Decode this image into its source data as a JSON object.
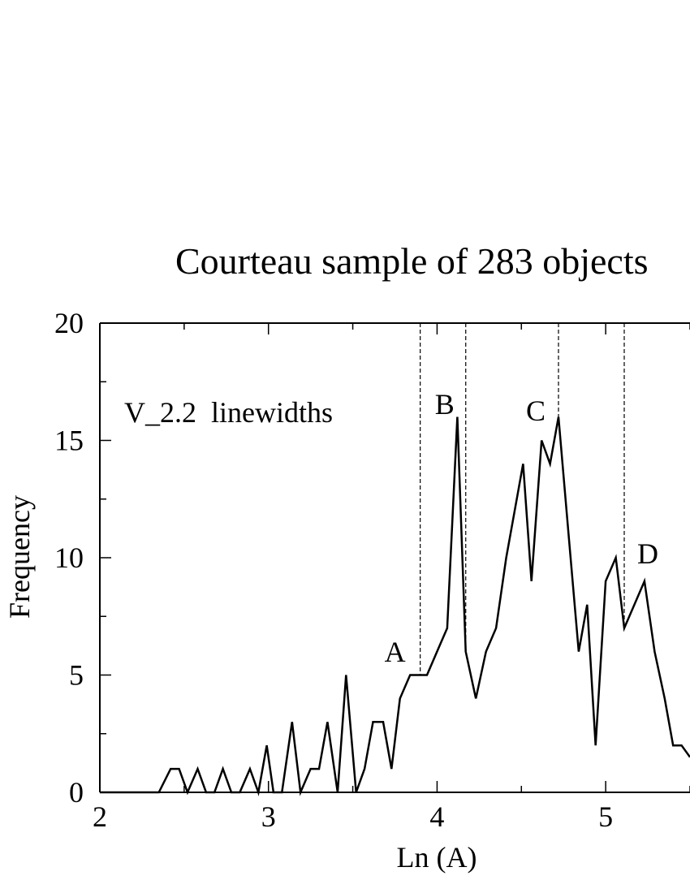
{
  "chart_data": {
    "type": "line",
    "title": "Courteau sample of 283 objects",
    "xlabel": "Ln (A)",
    "ylabel": "Frequency",
    "annotation": "V_2.2  linewidths",
    "xlim": [
      2,
      5.5
    ],
    "ylim": [
      0,
      20
    ],
    "xticks": [
      2,
      3,
      4,
      5
    ],
    "yticks": [
      0,
      5,
      10,
      15,
      20
    ],
    "grid": false,
    "series": [
      {
        "x": [
          2.0,
          2.35,
          2.42,
          2.47,
          2.52,
          2.58,
          2.63,
          2.68,
          2.73,
          2.78,
          2.83,
          2.89,
          2.94,
          2.99,
          3.03,
          3.08,
          3.14,
          3.19,
          3.25,
          3.3,
          3.35,
          3.41,
          3.46,
          3.52,
          3.57,
          3.62,
          3.68,
          3.73,
          3.78,
          3.84,
          3.89,
          3.94,
          4.0,
          4.06,
          4.12,
          4.17,
          4.23,
          4.29,
          4.35,
          4.41,
          4.46,
          4.51,
          4.56,
          4.62,
          4.67,
          4.72,
          4.78,
          4.84,
          4.89,
          4.94,
          5.0,
          5.06,
          5.11,
          5.17,
          5.23,
          5.29,
          5.35,
          5.4,
          5.45,
          5.5
        ],
        "y": [
          0,
          0,
          1,
          1,
          0,
          1,
          0,
          0,
          1,
          0,
          0,
          1,
          0,
          2,
          0,
          0,
          3,
          0,
          1,
          1,
          3,
          0,
          5,
          0,
          1,
          3,
          3,
          1,
          4,
          5,
          5,
          5,
          6,
          7,
          16,
          6,
          4,
          6,
          7,
          10,
          12,
          14,
          9,
          15,
          14,
          16,
          11,
          6,
          8,
          2,
          9,
          10,
          7,
          8,
          9,
          6,
          4,
          2,
          2,
          1.5
        ]
      }
    ],
    "markers": [
      {
        "label": "A",
        "x": 3.9
      },
      {
        "label": "B",
        "x": 4.17
      },
      {
        "label": "C",
        "x": 4.72
      },
      {
        "label": "D",
        "x": 5.11
      }
    ]
  }
}
